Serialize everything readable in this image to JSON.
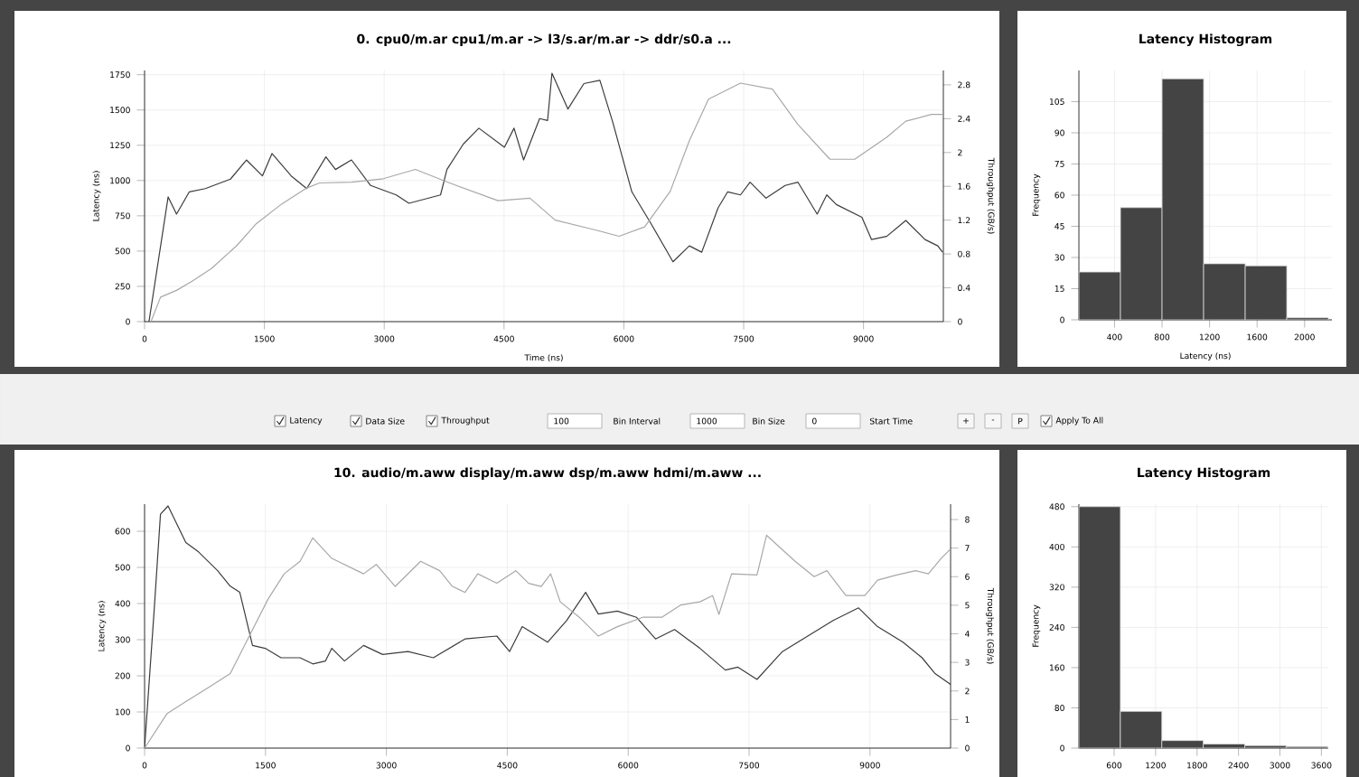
{
  "chart_data": [
    {
      "type": "line",
      "title": "0. cpu0/m.ar cpu1/m.ar -> l3/s.ar/m.ar -> ddr/s0.a ...",
      "xlabel": "Time (ns)",
      "ylabel": "Latency (ns)",
      "y2label": "Throughput (GB/s)",
      "xlim": [
        0,
        10000
      ],
      "xticks": [
        0,
        1500,
        3000,
        4500,
        6000,
        7500,
        9000
      ],
      "ylim": [
        0,
        1780
      ],
      "yticks": [
        0,
        250,
        500,
        750,
        1000,
        1250,
        1500,
        1750
      ],
      "y2lim": [
        0,
        2.97
      ],
      "y2ticks": [
        0,
        0.4,
        0.8,
        1.2,
        1.6,
        2,
        2.4,
        2.8
      ],
      "grid": true,
      "series": [
        {
          "color": "#3c3c3c",
          "x": [
            55,
            295,
            400,
            560,
            760,
            1075,
            1275,
            1475,
            1595,
            1835,
            2030,
            2270,
            2390,
            2590,
            2830,
            3150,
            3310,
            3705,
            3785,
            3990,
            4185,
            4505,
            4625,
            4745,
            4945,
            5045,
            5100,
            5300,
            5500,
            5700,
            5860,
            6100,
            6340,
            6615,
            6820,
            6975,
            7180,
            7300,
            7460,
            7580,
            7780,
            8020,
            8180,
            8420,
            8540,
            8660,
            8980,
            9100,
            9290,
            9530,
            9770,
            9930,
            9990
          ],
          "values": [
            0,
            884,
            762,
            920,
            943,
            1010,
            1146,
            1033,
            1191,
            1033,
            943,
            1168,
            1078,
            1146,
            965,
            898,
            839,
            898,
            1078,
            1258,
            1371,
            1236,
            1371,
            1146,
            1439,
            1425,
            1760,
            1507,
            1687,
            1710,
            1416,
            920,
            695,
            424,
            537,
            492,
            807,
            920,
            898,
            988,
            875,
            965,
            988,
            762,
            898,
            830,
            740,
            582,
            604,
            717,
            582,
            537,
            492
          ]
        },
        {
          "color": "#a8a8a8",
          "axis": "y2",
          "x": [
            80,
            200,
            400,
            600,
            840,
            1155,
            1400,
            1715,
            2030,
            2190,
            2590,
            2990,
            3390,
            3790,
            4425,
            4825,
            5140,
            5620,
            5940,
            6260,
            6580,
            6820,
            7060,
            7460,
            7860,
            8180,
            8580,
            8890,
            9290,
            9530,
            9850,
            9990
          ],
          "values": [
            0,
            0.29,
            0.37,
            0.48,
            0.63,
            0.9,
            1.16,
            1.39,
            1.58,
            1.64,
            1.65,
            1.69,
            1.8,
            1.65,
            1.43,
            1.46,
            1.2,
            1.09,
            1.01,
            1.12,
            1.54,
            2.14,
            2.63,
            2.82,
            2.75,
            2.33,
            1.92,
            1.92,
            2.18,
            2.37,
            2.45,
            2.45
          ]
        }
      ]
    },
    {
      "type": "histogram",
      "title": "Latency Histogram",
      "xlabel": "Latency (ns)",
      "ylabel": "Frequency",
      "bins": [
        100,
        450,
        800,
        1150,
        1500,
        1850,
        2200
      ],
      "values": [
        23,
        54,
        116,
        27,
        26,
        1
      ],
      "color": "#444444",
      "xlim": [
        100,
        2230
      ],
      "xticks": [
        400,
        800,
        1200,
        1600,
        2000
      ],
      "ylim": [
        0,
        120
      ],
      "yticks": [
        0,
        15,
        30,
        45,
        60,
        75,
        90,
        105
      ],
      "grid": true
    },
    {
      "type": "other",
      "annotations": [
        "Latency",
        "Data Size",
        "Throughput",
        "100",
        "Bin Interval",
        "1000",
        "Bin Size",
        "0",
        "Start Time",
        "+",
        "-",
        "P",
        "Apply To All"
      ]
    },
    {
      "type": "line",
      "title": "10. audio/m.aww display/m.aww dsp/m.aww hdmi/m.aww ...",
      "ylabel": "Latency (ns)",
      "y2label": "Throughput (GB/s)",
      "xlim": [
        0,
        10000
      ],
      "xticks": [
        0,
        1500,
        3000,
        4500,
        6000,
        7500,
        9000
      ],
      "ylim": [
        0,
        675
      ],
      "yticks": [
        0,
        100,
        200,
        300,
        400,
        500,
        600
      ],
      "y2lim": [
        0,
        8.54
      ],
      "y2ticks": [
        0,
        1,
        2,
        3,
        4,
        5,
        6,
        7,
        8
      ],
      "grid": true,
      "series": [
        {
          "color": "#3c3c3c",
          "x": [
            0,
            118,
            197,
            291,
            512,
            669,
            906,
            1063,
            1181,
            1339,
            1496,
            1693,
            1929,
            2087,
            2244,
            2323,
            2480,
            2717,
            2953,
            3268,
            3583,
            3976,
            4370,
            4528,
            4685,
            5000,
            5236,
            5472,
            5630,
            5866,
            6102,
            6339,
            6575,
            6890,
            7205,
            7362,
            7598,
            7913,
            8228,
            8543,
            8858,
            9094,
            9409,
            9646,
            9803,
            10000
          ],
          "values": [
            0,
            379,
            647,
            670,
            569,
            543,
            491,
            448,
            431,
            284,
            276,
            250,
            250,
            233,
            241,
            276,
            241,
            284,
            259,
            267,
            250,
            302,
            310,
            267,
            336,
            293,
            353,
            431,
            371,
            379,
            362,
            302,
            328,
            276,
            216,
            224,
            190,
            267,
            310,
            353,
            388,
            336,
            293,
            250,
            207,
            176
          ]
        },
        {
          "color": "#a8a8a8",
          "axis": "y2",
          "x": [
            0,
            276,
            512,
            827,
            1063,
            1299,
            1535,
            1732,
            1929,
            2087,
            2323,
            2717,
            2874,
            3110,
            3425,
            3661,
            3819,
            3976,
            4134,
            4370,
            4606,
            4764,
            4921,
            5039,
            5157,
            5394,
            5630,
            5866,
            6181,
            6417,
            6654,
            6890,
            7047,
            7126,
            7283,
            7598,
            7717,
            8071,
            8307,
            8465,
            8701,
            8937,
            9094,
            9331,
            9567,
            9724,
            9882,
            10000
          ],
          "values": [
            0,
            1.2,
            1.63,
            2.18,
            2.61,
            3.92,
            5.23,
            6.1,
            6.54,
            7.36,
            6.64,
            6.1,
            6.43,
            5.66,
            6.54,
            6.21,
            5.66,
            5.45,
            6.1,
            5.77,
            6.21,
            5.77,
            5.66,
            6.1,
            5.12,
            4.58,
            3.92,
            4.25,
            4.58,
            4.58,
            5.01,
            5.12,
            5.34,
            4.68,
            6.1,
            6.06,
            7.45,
            6.54,
            6,
            6.21,
            5.34,
            5.34,
            5.88,
            6.06,
            6.21,
            6.1,
            6.64,
            6.97
          ]
        }
      ]
    },
    {
      "type": "histogram",
      "title": "Latency Histogram",
      "ylabel": "Frequency",
      "bins": [
        90,
        690,
        1290,
        1890,
        2490,
        3090,
        3690
      ],
      "values": [
        480,
        73,
        15,
        8,
        5,
        3
      ],
      "color": "#444444",
      "xlim": [
        90,
        3700
      ],
      "xticks": [
        600,
        1200,
        1800,
        2400,
        3000,
        3600
      ],
      "ylim": [
        0,
        485
      ],
      "yticks": [
        0,
        80,
        160,
        240,
        320,
        400,
        480
      ],
      "grid": true
    }
  ]
}
